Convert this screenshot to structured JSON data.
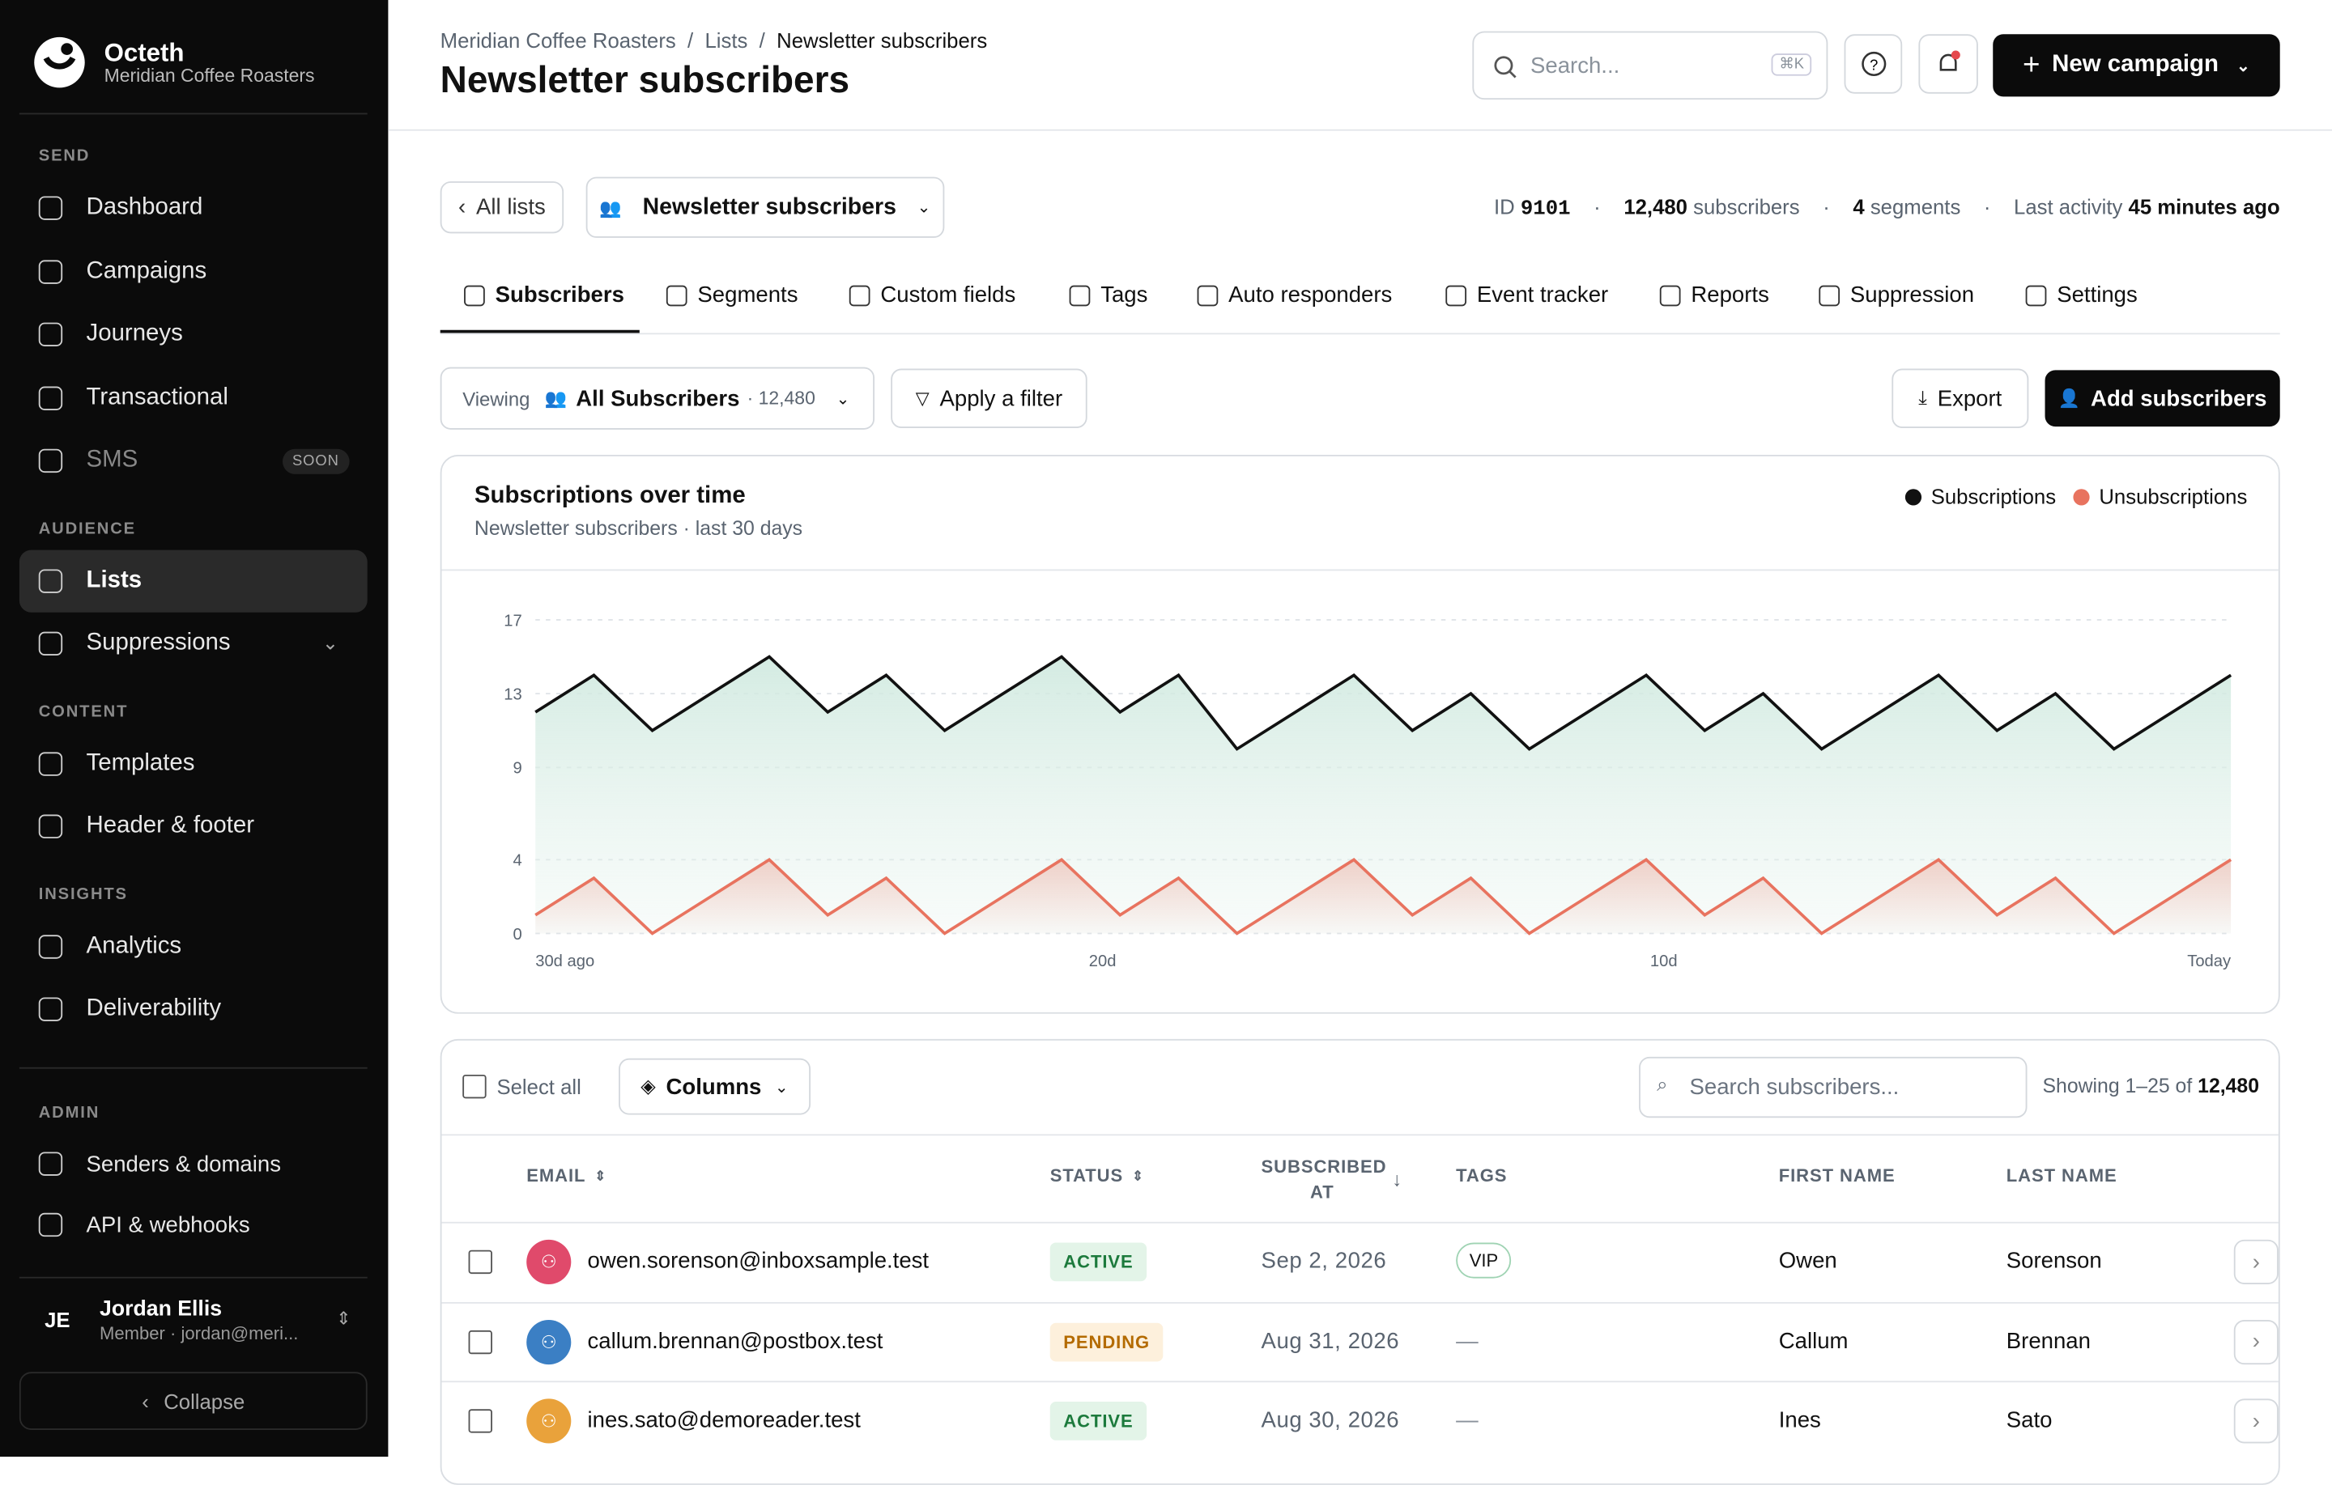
{
  "sidebar": {
    "brand": "Octeth",
    "org": "Meridian Coffee Roasters",
    "sections": [
      {
        "heading": "SEND",
        "items": [
          "Dashboard",
          "Campaigns",
          "Journeys",
          "Transactional",
          "SMS"
        ]
      },
      {
        "heading": "AUDIENCE",
        "items": [
          "Lists",
          "Suppressions"
        ]
      },
      {
        "heading": "CONTENT",
        "items": [
          "Templates",
          "Header & footer"
        ]
      },
      {
        "heading": "INSIGHTS",
        "items": [
          "Analytics",
          "Deliverability"
        ]
      },
      {
        "heading": "ADMIN",
        "items": [
          "Senders & domains",
          "API & webhooks"
        ]
      }
    ],
    "sms_badge": "SOON",
    "user": {
      "initials": "JE",
      "name": "Jordan Ellis",
      "role": "Member · jordan@meri..."
    },
    "collapse": "Collapse"
  },
  "header": {
    "breadcrumbs": [
      "Meridian Coffee Roasters",
      "Lists",
      "Newsletter subscribers"
    ],
    "title": "Newsletter subscribers",
    "search_placeholder": "Search...",
    "shortcut": "⌘K",
    "new_campaign": "New campaign"
  },
  "list_bar": {
    "back": "All lists",
    "list_name": "Newsletter subscribers",
    "id_label": "ID",
    "id": "9101",
    "subscribers_count": "12,480",
    "subscribers_label": "subscribers",
    "segments_count": "4",
    "segments_label": "segments",
    "activity_label": "Last activity",
    "activity": "45 minutes ago"
  },
  "tabs": [
    "Subscribers",
    "Segments",
    "Custom fields",
    "Tags",
    "Auto responders",
    "Event tracker",
    "Reports",
    "Suppression",
    "Settings"
  ],
  "toolbar": {
    "viewing": "Viewing",
    "view": "All Subscribers",
    "view_count": "· 12,480",
    "filter": "Apply a filter",
    "export": "Export",
    "add": "Add subscribers"
  },
  "chart_data": {
    "type": "line",
    "title": "Subscriptions over time",
    "subtitle": "Newsletter subscribers · last 30 days",
    "x": [
      0,
      1,
      2,
      3,
      4,
      5,
      6,
      7,
      8,
      9,
      10,
      11,
      12,
      13,
      14,
      15,
      16,
      17,
      18,
      19,
      20,
      21,
      22,
      23,
      24,
      25,
      26,
      27,
      28,
      29
    ],
    "xlim": [
      0,
      29
    ],
    "xticks": [
      {
        "value": 0,
        "label": "30d ago"
      },
      {
        "value": 9.7,
        "label": "20d"
      },
      {
        "value": 19.3,
        "label": "10d"
      },
      {
        "value": 29,
        "label": "Today"
      }
    ],
    "ylim": [
      0,
      17
    ],
    "yticks": [
      0,
      4,
      9,
      13,
      17
    ],
    "grid": true,
    "legend": "top-right",
    "series": [
      {
        "name": "Subscriptions",
        "color": "#111111",
        "values": [
          12,
          14,
          11,
          13,
          15,
          12,
          14,
          11,
          13,
          15,
          12,
          14,
          10,
          12,
          14,
          11,
          13,
          10,
          12,
          14,
          11,
          13,
          10,
          12,
          14,
          11,
          13,
          10,
          12,
          14
        ]
      },
      {
        "name": "Unsubscriptions",
        "color": "#e8735f",
        "values": [
          1,
          3,
          0,
          2,
          4,
          1,
          3,
          0,
          2,
          4,
          1,
          3,
          0,
          2,
          4,
          1,
          3,
          0,
          2,
          4,
          1,
          3,
          0,
          2,
          4,
          1,
          3,
          0,
          2,
          4
        ]
      }
    ]
  },
  "table": {
    "select_all": "Select all",
    "columns": "Columns",
    "search_placeholder": "Search subscribers...",
    "showing": "Showing 1–25 of",
    "total": "12,480",
    "headers": [
      "EMAIL",
      "STATUS",
      "SUBSCRIBED AT",
      "TAGS",
      "FIRST NAME",
      "LAST NAME"
    ],
    "rows": [
      [
        "owen.sorenson@inboxsample.test",
        "ACTIVE",
        "Sep 2, 2026",
        "VIP",
        "Owen",
        "Sorenson"
      ],
      [
        "callum.brennan@postbox.test",
        "PENDING",
        "Aug 31, 2026",
        "—",
        "Callum",
        "Brennan"
      ],
      [
        "ines.sato@demoreader.test",
        "ACTIVE",
        "Aug 30, 2026",
        "—",
        "Ines",
        "Sato"
      ]
    ]
  }
}
